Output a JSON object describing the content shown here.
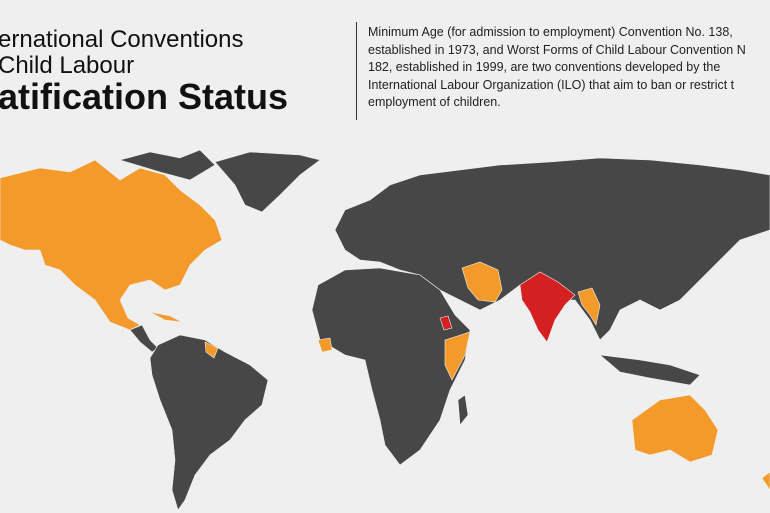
{
  "header": {
    "title_lines": [
      "ernational Conventions",
      "Child Labour"
    ],
    "title_bold": "atification Status"
  },
  "description": {
    "lines": [
      "Minimum Age (for admission to employment) Convention No. 138,",
      "established in 1973, and Worst Forms of Child Labour Convention N",
      "182, established in 1999, are two conventions developed by the",
      "International Labour Organization (ILO) that aim to ban or restrict t",
      "employment of children."
    ]
  }
}
